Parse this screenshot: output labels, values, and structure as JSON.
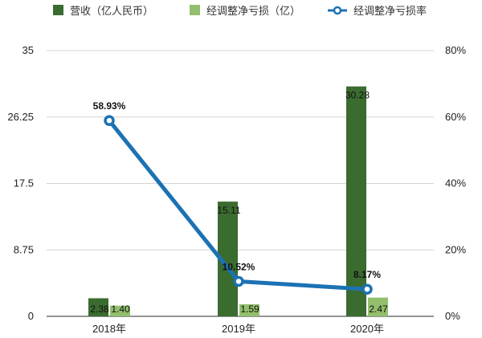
{
  "chart_data": {
    "type": "bar",
    "categories": [
      "2018年",
      "2019年",
      "2020年"
    ],
    "series": [
      {
        "name": "营收（亿人民币）",
        "type": "bar",
        "axis": "left",
        "color": "#3a6b2f",
        "values": [
          2.38,
          15.11,
          30.28
        ],
        "labels": [
          "2.38",
          "15.11",
          "30.28"
        ]
      },
      {
        "name": "经调整净亏损（亿）",
        "type": "bar",
        "axis": "left",
        "color": "#93bf6d",
        "values": [
          1.4,
          1.59,
          2.47
        ],
        "labels": [
          "1.40",
          "1.59",
          "2.47"
        ]
      },
      {
        "name": "经调整净亏损率",
        "type": "line",
        "axis": "right",
        "color": "#1b72b4",
        "values": [
          58.93,
          10.52,
          8.17
        ],
        "labels": [
          "58.93%",
          "10.52%",
          "8.17%"
        ]
      }
    ],
    "y_left": {
      "ylim": [
        0,
        35
      ],
      "ticks": [
        0,
        8.75,
        17.5,
        26.25,
        35
      ],
      "tick_labels": [
        "0",
        "8.75",
        "17.5",
        "26.25",
        "35"
      ]
    },
    "y_right": {
      "ylim": [
        0,
        80
      ],
      "ticks": [
        0,
        20,
        40,
        60,
        80
      ],
      "tick_labels": [
        "0%",
        "20%",
        "40%",
        "60%",
        "80%"
      ]
    },
    "grid": true,
    "legend_position": "top"
  }
}
